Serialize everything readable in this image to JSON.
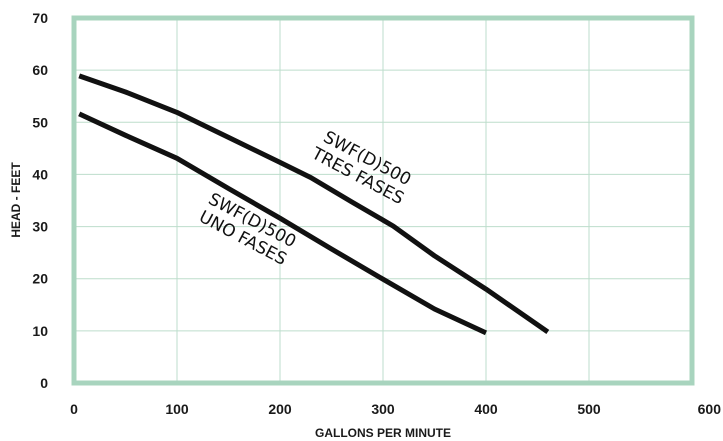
{
  "chart_data": {
    "type": "line",
    "xlabel": "GALLONS PER MINUTE",
    "ylabel": "HEAD - FEET",
    "xlim": [
      0,
      600
    ],
    "ylim": [
      0,
      70
    ],
    "x_ticks": [
      "0",
      "100",
      "200",
      "300",
      "400",
      "500",
      "600"
    ],
    "y_ticks": [
      "0",
      "10",
      "20",
      "30",
      "40",
      "50",
      "60",
      "70"
    ],
    "grid": true,
    "series": [
      {
        "name": "SWF(D)500 TRES FASES",
        "label_lines": [
          "SWF(D)500",
          "TRES FASES"
        ],
        "x": [
          5,
          50,
          100,
          150,
          200,
          230,
          270,
          310,
          350,
          400,
          460
        ],
        "y": [
          58.9,
          55.8,
          51.9,
          47.1,
          42.3,
          39.4,
          34.7,
          30.1,
          24.4,
          18.0,
          9.8
        ]
      },
      {
        "name": "SWF(D)500 UNO FASES",
        "label_lines": [
          "SWF(D)500",
          "UNO FASES"
        ],
        "x": [
          5,
          50,
          100,
          150,
          200,
          250,
          300,
          350,
          400
        ],
        "y": [
          51.6,
          47.5,
          43.1,
          37.3,
          31.6,
          25.7,
          19.9,
          14.2,
          9.6
        ]
      }
    ],
    "colors": {
      "frame": "#a8d4be",
      "grid": "#bdddcc",
      "line": "#111111",
      "text": "#1a1a1a"
    }
  }
}
